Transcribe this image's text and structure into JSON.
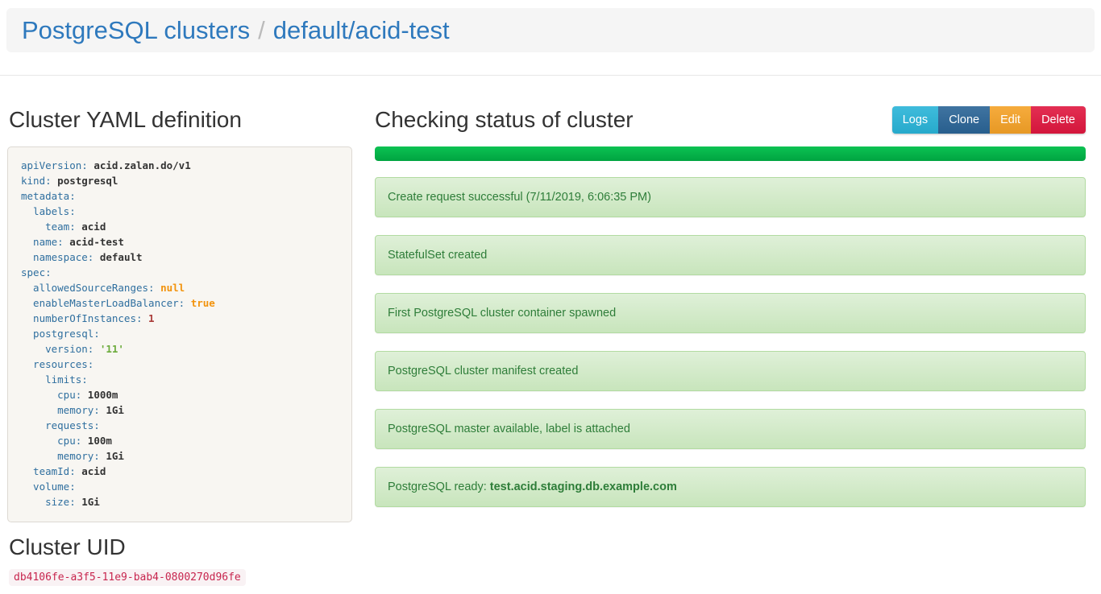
{
  "breadcrumb": {
    "root": "PostgreSQL clusters",
    "separator": "/",
    "current": "default/acid-test"
  },
  "yaml_section": {
    "title": "Cluster YAML definition",
    "lines": [
      {
        "indent": 0,
        "key": "apiVersion",
        "value": "acid.zalan.do/v1",
        "type": "plain"
      },
      {
        "indent": 0,
        "key": "kind",
        "value": "postgresql",
        "type": "plain"
      },
      {
        "indent": 0,
        "key": "metadata",
        "value": "",
        "type": "none"
      },
      {
        "indent": 1,
        "key": "labels",
        "value": "",
        "type": "none"
      },
      {
        "indent": 2,
        "key": "team",
        "value": "acid",
        "type": "plain"
      },
      {
        "indent": 1,
        "key": "name",
        "value": "acid-test",
        "type": "plain"
      },
      {
        "indent": 1,
        "key": "namespace",
        "value": "default",
        "type": "plain"
      },
      {
        "indent": 0,
        "key": "spec",
        "value": "",
        "type": "none"
      },
      {
        "indent": 1,
        "key": "allowedSourceRanges",
        "value": "null",
        "type": "literal"
      },
      {
        "indent": 1,
        "key": "enableMasterLoadBalancer",
        "value": "true",
        "type": "literal"
      },
      {
        "indent": 1,
        "key": "numberOfInstances",
        "value": "1",
        "type": "number"
      },
      {
        "indent": 1,
        "key": "postgresql",
        "value": "",
        "type": "none"
      },
      {
        "indent": 2,
        "key": "version",
        "value": "'11'",
        "type": "string"
      },
      {
        "indent": 1,
        "key": "resources",
        "value": "",
        "type": "none"
      },
      {
        "indent": 2,
        "key": "limits",
        "value": "",
        "type": "none"
      },
      {
        "indent": 3,
        "key": "cpu",
        "value": "1000m",
        "type": "plain"
      },
      {
        "indent": 3,
        "key": "memory",
        "value": "1Gi",
        "type": "plain"
      },
      {
        "indent": 2,
        "key": "requests",
        "value": "",
        "type": "none"
      },
      {
        "indent": 3,
        "key": "cpu",
        "value": "100m",
        "type": "plain"
      },
      {
        "indent": 3,
        "key": "memory",
        "value": "1Gi",
        "type": "plain"
      },
      {
        "indent": 1,
        "key": "teamId",
        "value": "acid",
        "type": "plain"
      },
      {
        "indent": 1,
        "key": "volume",
        "value": "",
        "type": "none"
      },
      {
        "indent": 2,
        "key": "size",
        "value": "1Gi",
        "type": "plain"
      }
    ]
  },
  "uid_section": {
    "title": "Cluster UID",
    "value": "db4106fe-a3f5-11e9-bab4-0800270d96fe"
  },
  "status_section": {
    "title": "Checking status of cluster",
    "buttons": [
      {
        "id": "logs",
        "label": "Logs",
        "color": "#29b4d8"
      },
      {
        "id": "clone",
        "label": "Clone",
        "color": "#2a6496"
      },
      {
        "id": "edit",
        "label": "Edit",
        "color": "#f5a227"
      },
      {
        "id": "delete",
        "label": "Delete",
        "color": "#e0173f"
      }
    ],
    "progress": {
      "percent": 100,
      "color_top": "#0cc253",
      "color_bottom": "#00a441"
    },
    "messages": [
      {
        "text": "Create request successful (7/11/2019, 6:06:35 PM)",
        "bold": ""
      },
      {
        "text": "StatefulSet created",
        "bold": ""
      },
      {
        "text": "First PostgreSQL cluster container spawned",
        "bold": ""
      },
      {
        "text": "PostgreSQL cluster manifest created",
        "bold": ""
      },
      {
        "text": "PostgreSQL master available, label is attached",
        "bold": ""
      },
      {
        "text": "PostgreSQL ready: ",
        "bold": "test.acid.staging.db.example.com"
      }
    ]
  },
  "colors": {
    "link_blue": "#2e79bd",
    "status_text_green": "#2e7d39",
    "status_bg_green": "#dff0d8",
    "uid_pink": "#c7254e"
  }
}
